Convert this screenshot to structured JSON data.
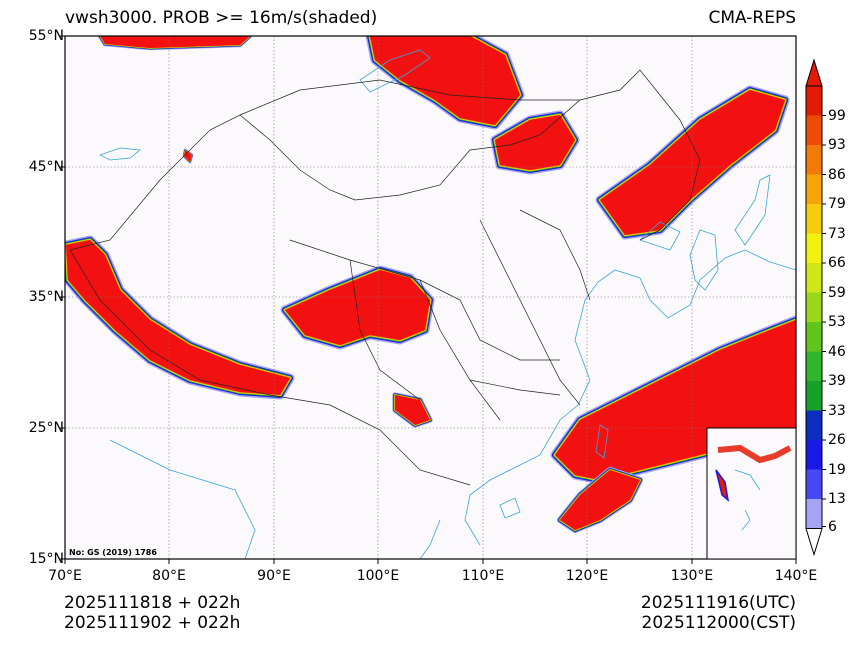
{
  "title": "vwsh3000. PROB >= 16m/s(shaded)",
  "model": "CMA-REPS",
  "map_note": "No: GS (2019) 1786",
  "latitude_labels": [
    "55°N",
    "45°N",
    "35°N",
    "25°N",
    "15°N"
  ],
  "longitude_labels": [
    "70°E",
    "80°E",
    "90°E",
    "100°E",
    "110°E",
    "120°E",
    "130°E",
    "140°E"
  ],
  "init_time_utc": "2025111818  +  022h",
  "init_time_cst": "2025111902  +  022h",
  "valid_time_utc": "2025111916(UTC)",
  "valid_time_cst": "2025112000(CST)",
  "colorbar": {
    "levels": [
      "6",
      "13",
      "19",
      "26",
      "33",
      "39",
      "46",
      "53",
      "59",
      "66",
      "73",
      "79",
      "86",
      "93",
      "99"
    ],
    "colors": [
      "#a4a4f5",
      "#4848f4",
      "#1a1ae8",
      "#0b2ec0",
      "#17a02a",
      "#32b52a",
      "#62c51e",
      "#9bd81a",
      "#cfe617",
      "#f2f20f",
      "#f6cc0c",
      "#f6a40a",
      "#f27a08",
      "#ec4c06",
      "#e41a04"
    ]
  },
  "colors": {
    "high": "#f21010",
    "mid": "#f68a0c",
    "low": "#1a1ae8",
    "light": "#a4a4f5",
    "green": "#17a02a",
    "yellow": "#f2e20f",
    "coast": "#3aa6d6",
    "border": "#222222",
    "background": "#fcf9fc"
  }
}
